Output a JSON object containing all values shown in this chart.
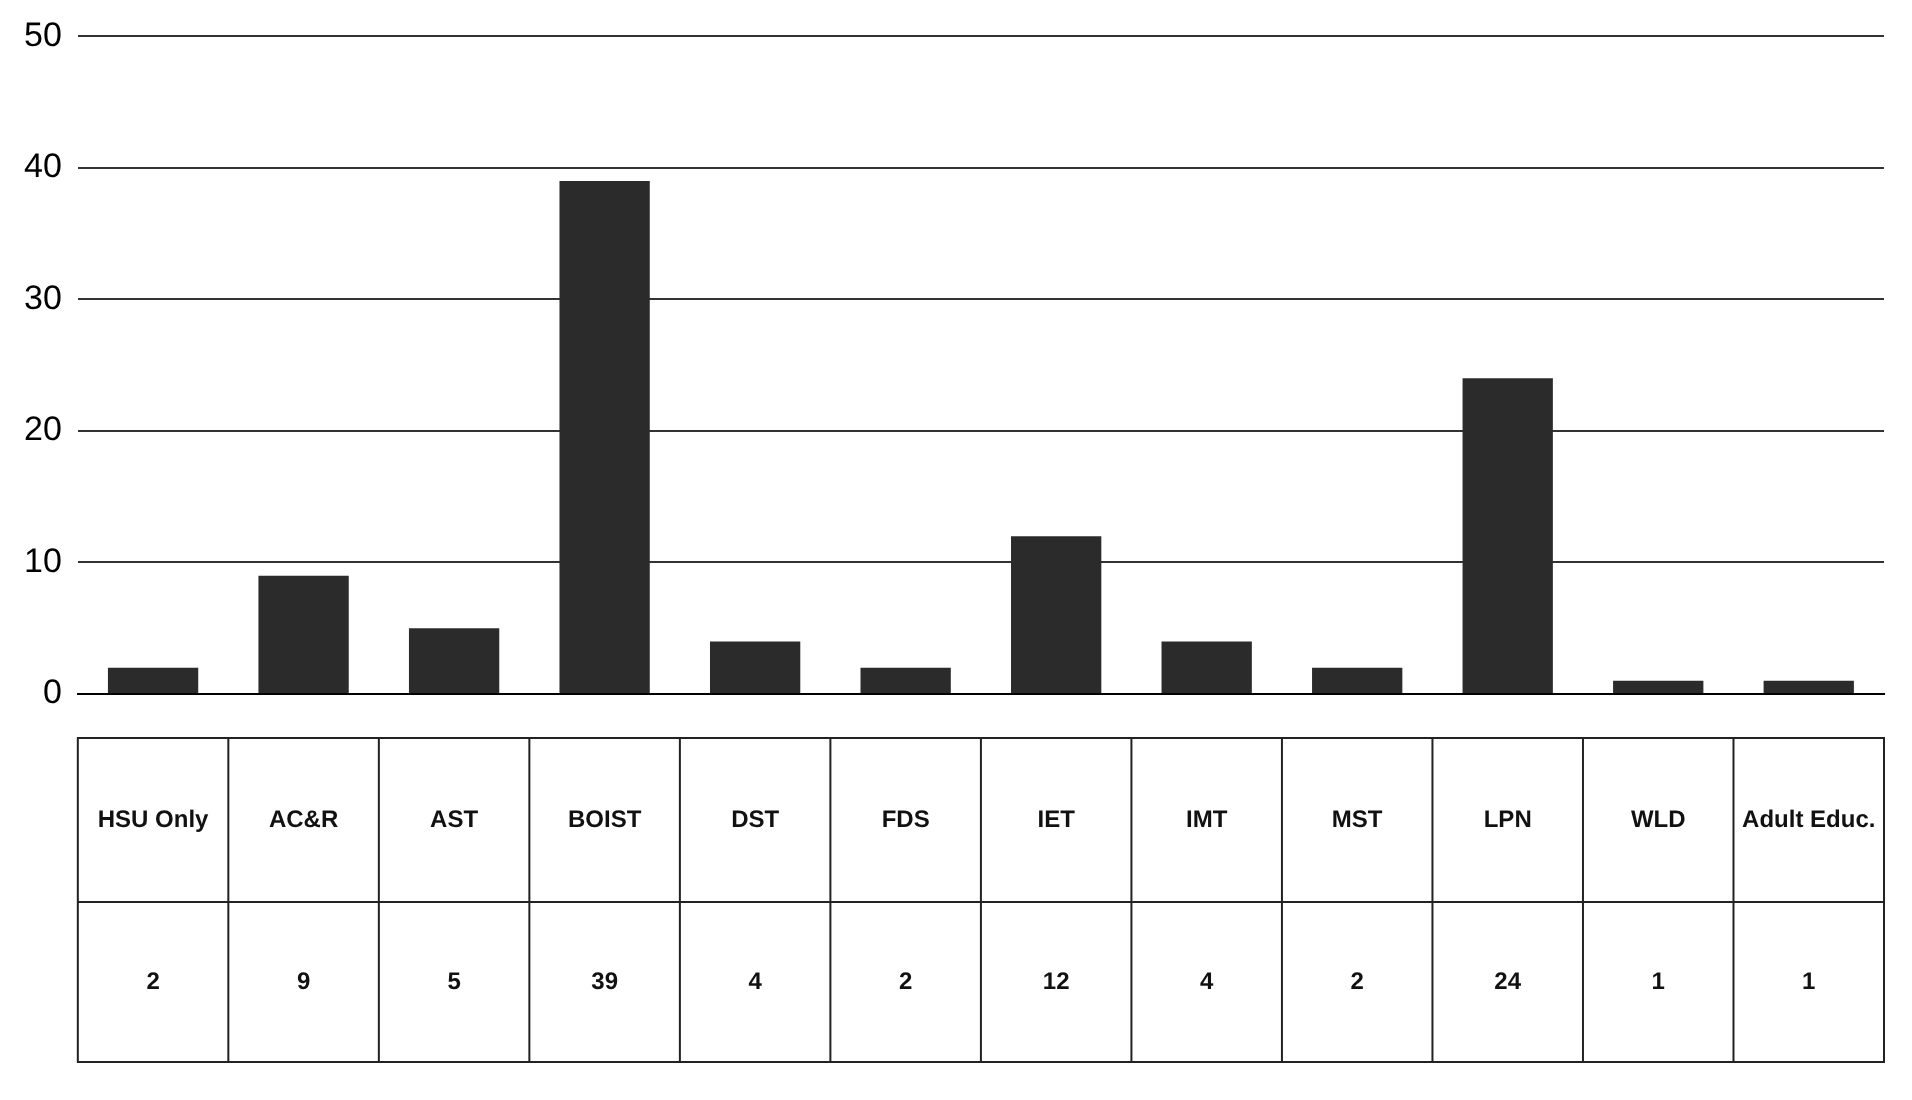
{
  "chart_data": {
    "type": "bar",
    "categories": [
      "HSU Only",
      "AC&R",
      "AST",
      "BOIST",
      "DST",
      "FDS",
      "IET",
      "IMT",
      "MST",
      "LPN",
      "WLD",
      "Adult Educ."
    ],
    "values": [
      2,
      9,
      5,
      39,
      4,
      2,
      12,
      4,
      2,
      24,
      1,
      1
    ],
    "color": "#2b2b2b",
    "ylim": [
      0,
      50
    ],
    "yticks": [
      0,
      10,
      20,
      30,
      40,
      50
    ],
    "grid": "y",
    "legend": false,
    "data_labels": true
  }
}
